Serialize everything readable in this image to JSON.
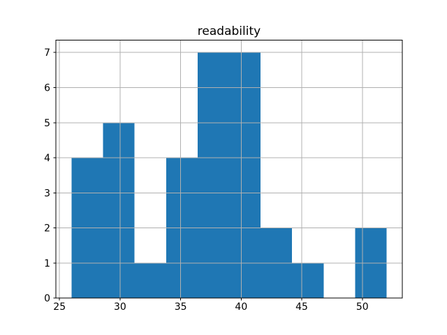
{
  "figure": {
    "background": "#ffffff"
  },
  "chart_data": {
    "type": "bar",
    "subtype": "histogram",
    "title": "readability",
    "xlabel": "",
    "ylabel": "",
    "bin_edges": [
      26.0,
      28.6,
      31.2,
      33.8,
      36.4,
      39.0,
      41.6,
      44.2,
      46.8,
      49.4,
      52.0
    ],
    "counts": [
      4,
      5,
      1,
      4,
      7,
      7,
      2,
      1,
      0,
      2
    ],
    "total_observations": 33,
    "xticks": [
      25,
      30,
      35,
      40,
      45,
      50
    ],
    "yticks": [
      0,
      1,
      2,
      3,
      4,
      5,
      6,
      7
    ],
    "xlim": [
      24.7,
      53.3
    ],
    "ylim": [
      0,
      7.35
    ],
    "grid": true,
    "grid_above_bars": true,
    "colors": {
      "bar": "#1f77b4",
      "grid": "#b0b0b0",
      "spine": "#000000",
      "text": "#000000",
      "background": "#ffffff"
    }
  }
}
